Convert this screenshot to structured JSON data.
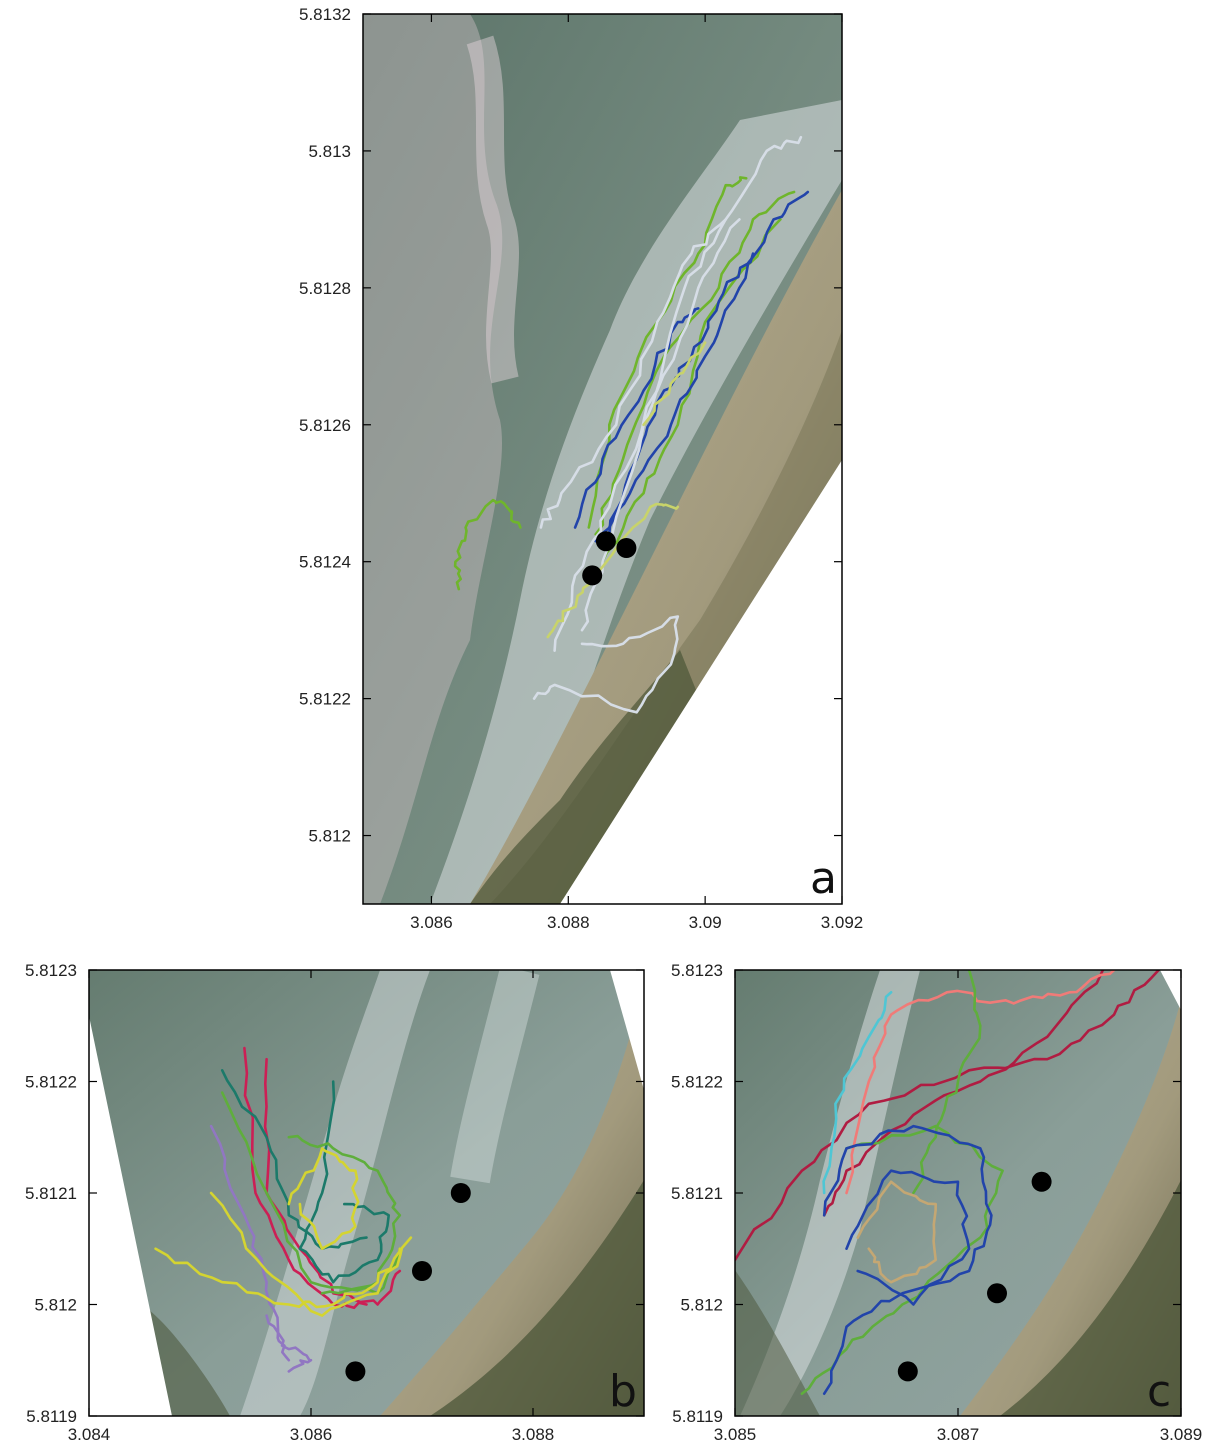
{
  "figure_labels": [
    "a",
    "b",
    "c"
  ],
  "marker_legend": "black dots = fixed instrument positions (no legend printed)",
  "colors": {
    "ocean_dark": "#5f786c",
    "ocean_mid": "#7f9488",
    "foam": "#d6dde0",
    "sand": "#b0a78c",
    "vegetation": "#4b5638",
    "marker": "#000000"
  },
  "chart_data": [
    {
      "panel": "a",
      "type": "scatter",
      "title": "",
      "xlabel": "",
      "ylabel": "",
      "xlim": [
        3.085,
        3.092
      ],
      "ylim": [
        5.8119,
        5.8132
      ],
      "xticks": [
        3.086,
        3.088,
        3.09,
        3.092
      ],
      "xtick_labels": [
        "3.086",
        "3.088",
        "3.09",
        "3.092"
      ],
      "yticks": [
        5.812,
        5.8122,
        5.8124,
        5.8126,
        5.8128,
        5.813,
        5.8132
      ],
      "ytick_labels": [
        "5.812",
        "5.8122",
        "5.8124",
        "5.8126",
        "5.8128",
        "5.813",
        "5.8132"
      ],
      "background": "aerial image of surf zone and beach",
      "markers": [
        {
          "x": 3.08835,
          "y": 5.81238
        },
        {
          "x": 3.08855,
          "y": 5.81243
        },
        {
          "x": 3.08885,
          "y": 5.81242
        }
      ],
      "series": [
        {
          "color": "#6fb52c",
          "points": [
            [
              3.0864,
              5.81236
            ],
            [
              3.08635,
              5.8124
            ],
            [
              3.0865,
              5.81245
            ],
            [
              3.0869,
              5.81249
            ],
            [
              3.0871,
              5.81248
            ],
            [
              3.0873,
              5.81245
            ]
          ]
        },
        {
          "color": "#6fb52c",
          "points": [
            [
              3.0883,
              5.81245
            ],
            [
              3.0886,
              5.8126
            ],
            [
              3.0893,
              5.81275
            ],
            [
              3.0899,
              5.81285
            ],
            [
              3.0903,
              5.81295
            ],
            [
              3.0906,
              5.81296
            ]
          ]
        },
        {
          "color": "#6fb52c",
          "points": [
            [
              3.0884,
              5.81244
            ],
            [
              3.0888,
              5.81255
            ],
            [
              3.0894,
              5.8127
            ],
            [
              3.0902,
              5.8128
            ],
            [
              3.0907,
              5.8129
            ],
            [
              3.0913,
              5.81294
            ]
          ]
        },
        {
          "color": "#6fb52c",
          "points": [
            [
              3.0885,
              5.8124
            ],
            [
              3.0891,
              5.8125
            ],
            [
              3.0896,
              5.8126
            ],
            [
              3.09,
              5.81275
            ],
            [
              3.0911,
              5.8129
            ]
          ]
        },
        {
          "color": "#2244aa",
          "points": [
            [
              3.0881,
              5.81245
            ],
            [
              3.0885,
              5.81255
            ],
            [
              3.0891,
              5.81265
            ],
            [
              3.0896,
              5.81275
            ],
            [
              3.0899,
              5.81277
            ]
          ]
        },
        {
          "color": "#2244aa",
          "points": [
            [
              3.0884,
              5.81243
            ],
            [
              3.0889,
              5.8125
            ],
            [
              3.0895,
              5.8126
            ],
            [
              3.09,
              5.8127
            ],
            [
              3.0905,
              5.8128
            ],
            [
              3.091,
              5.8129
            ],
            [
              3.0915,
              5.81294
            ]
          ]
        },
        {
          "color": "#2244aa",
          "points": [
            [
              3.0886,
              5.81244
            ],
            [
              3.089,
              5.81255
            ],
            [
              3.0894,
              5.81265
            ],
            [
              3.0898,
              5.8127
            ],
            [
              3.0902,
              5.81278
            ],
            [
              3.0907,
              5.81285
            ]
          ]
        },
        {
          "color": "#d6dde6",
          "points": [
            [
              3.0876,
              5.81245
            ],
            [
              3.0879,
              5.8125
            ],
            [
              3.0887,
              5.8126
            ],
            [
              3.0893,
              5.81275
            ],
            [
              3.0898,
              5.81285
            ],
            [
              3.0903,
              5.8129
            ]
          ]
        },
        {
          "color": "#d6dde6",
          "points": [
            [
              3.0875,
              5.8122
            ],
            [
              3.0878,
              5.81222
            ],
            [
              3.089,
              5.81218
            ],
            [
              3.0895,
              5.81225
            ],
            [
              3.0896,
              5.81232
            ],
            [
              3.0888,
              5.81228
            ],
            [
              3.0882,
              5.81228
            ]
          ]
        },
        {
          "color": "#d6dde6",
          "points": [
            [
              3.0882,
              5.8123
            ],
            [
              3.0885,
              5.8124
            ],
            [
              3.0891,
              5.8126
            ],
            [
              3.0897,
              5.8128
            ],
            [
              3.0903,
              5.8129
            ],
            [
              3.0909,
              5.813
            ],
            [
              3.0914,
              5.81302
            ]
          ]
        },
        {
          "color": "#d6dde6",
          "points": [
            [
              3.0878,
              5.81227
            ],
            [
              3.0881,
              5.81238
            ],
            [
              3.0886,
              5.81248
            ],
            [
              3.0893,
              5.81265
            ],
            [
              3.0899,
              5.8128
            ],
            [
              3.0905,
              5.8129
            ]
          ]
        },
        {
          "color": "#c8d36a",
          "points": [
            [
              3.0877,
              5.81229
            ],
            [
              3.088,
              5.81233
            ],
            [
              3.0884,
              5.81238
            ],
            [
              3.0892,
              5.81248
            ],
            [
              3.0896,
              5.81248
            ]
          ]
        },
        {
          "color": "#c8d36a",
          "points": [
            [
              3.0891,
              5.8126
            ],
            [
              3.0895,
              5.81266
            ],
            [
              3.09,
              5.81272
            ]
          ]
        }
      ]
    },
    {
      "panel": "b",
      "type": "scatter",
      "title": "",
      "xlabel": "",
      "ylabel": "",
      "xlim": [
        3.084,
        3.089
      ],
      "ylim": [
        5.8119,
        5.8123
      ],
      "xticks": [
        3.084,
        3.086,
        3.088
      ],
      "xtick_labels": [
        "3.084",
        "3.086",
        "3.088"
      ],
      "yticks": [
        5.8119,
        5.812,
        5.8121,
        5.8122,
        5.8123
      ],
      "ytick_labels": [
        "5.8119",
        "5.812",
        "5.8121",
        "5.8122",
        "5.8123"
      ],
      "background": "aerial image of surf zone and beach",
      "markers": [
        {
          "x": 3.08735,
          "y": 5.8121
        },
        {
          "x": 3.087,
          "y": 5.81203
        },
        {
          "x": 3.0864,
          "y": 5.81194
        }
      ],
      "series": [
        {
          "color": "#cc1f55",
          "points": [
            [
              3.0856,
              5.81222
            ],
            [
              3.0856,
              5.8121
            ],
            [
              3.0859,
              5.81205
            ],
            [
              3.0862,
              5.81201
            ],
            [
              3.0866,
              5.812
            ],
            [
              3.0868,
              5.81203
            ]
          ]
        },
        {
          "color": "#cc1f55",
          "points": [
            [
              3.0854,
              5.81223
            ],
            [
              3.0855,
              5.8121
            ],
            [
              3.0858,
              5.81204
            ],
            [
              3.0862,
              5.812
            ],
            [
              3.0865,
              5.812
            ]
          ]
        },
        {
          "color": "#1c7a6a",
          "points": [
            [
              3.0862,
              5.8122
            ],
            [
              3.0861,
              5.8121
            ],
            [
              3.0859,
              5.81205
            ],
            [
              3.0862,
              5.81202
            ],
            [
              3.0866,
              5.81204
            ],
            [
              3.0867,
              5.81208
            ],
            [
              3.0863,
              5.81209
            ]
          ]
        },
        {
          "color": "#1c7a6a",
          "points": [
            [
              3.0852,
              5.81221
            ],
            [
              3.0856,
              5.81215
            ],
            [
              3.0858,
              5.81208
            ],
            [
              3.0861,
              5.81205
            ],
            [
              3.0865,
              5.81206
            ]
          ]
        },
        {
          "color": "#5fae3c",
          "points": [
            [
              3.0852,
              5.81219
            ],
            [
              3.0856,
              5.8121
            ],
            [
              3.086,
              5.81202
            ],
            [
              3.0866,
              5.81201
            ],
            [
              3.0868,
              5.81205
            ]
          ]
        },
        {
          "color": "#5fae3c",
          "points": [
            [
              3.0858,
              5.81215
            ],
            [
              3.0862,
              5.81214
            ],
            [
              3.0866,
              5.81212
            ],
            [
              3.0868,
              5.81208
            ],
            [
              3.0866,
              5.81202
            ],
            [
              3.0861,
              5.81201
            ]
          ]
        },
        {
          "color": "#9177c2",
          "points": [
            [
              3.0851,
              5.81216
            ],
            [
              3.0854,
              5.81208
            ],
            [
              3.0856,
              5.81202
            ],
            [
              3.0857,
              5.81197
            ],
            [
              3.0858,
              5.81195
            ]
          ]
        },
        {
          "color": "#9177c2",
          "points": [
            [
              3.0856,
              5.81199
            ],
            [
              3.0858,
              5.81196
            ],
            [
              3.086,
              5.81195
            ],
            [
              3.0858,
              5.81194
            ]
          ]
        },
        {
          "color": "#d4d431",
          "points": [
            [
              3.0846,
              5.81205
            ],
            [
              3.0852,
              5.81202
            ],
            [
              3.0858,
              5.812
            ],
            [
              3.0862,
              5.812
            ],
            [
              3.0866,
              5.81202
            ],
            [
              3.0868,
              5.81205
            ]
          ]
        },
        {
          "color": "#d4d431",
          "points": [
            [
              3.0851,
              5.8121
            ],
            [
              3.0856,
              5.81203
            ],
            [
              3.0861,
              5.81199
            ],
            [
              3.0866,
              5.81201
            ],
            [
              3.0869,
              5.81206
            ]
          ]
        },
        {
          "color": "#d4d431",
          "points": [
            [
              3.0858,
              5.81209
            ],
            [
              3.0861,
              5.81214
            ],
            [
              3.0864,
              5.81212
            ],
            [
              3.0864,
              5.81207
            ],
            [
              3.0861,
              5.81205
            ],
            [
              3.0859,
              5.81209
            ]
          ]
        }
      ]
    },
    {
      "panel": "c",
      "type": "scatter",
      "title": "",
      "xlabel": "",
      "ylabel": "",
      "xlim": [
        3.085,
        3.089
      ],
      "ylim": [
        5.8119,
        5.8123
      ],
      "xticks": [
        3.085,
        3.087,
        3.089
      ],
      "xtick_labels": [
        "3.085",
        "3.087",
        "3.089"
      ],
      "yticks": [
        5.8119,
        5.812,
        5.8121,
        5.8122,
        5.8123
      ],
      "ytick_labels": [
        "5.8119",
        "5.812",
        "5.8121",
        "5.8122",
        "5.8123"
      ],
      "background": "aerial image of surf zone and beach",
      "markers": [
        {
          "x": 3.08775,
          "y": 5.81211
        },
        {
          "x": 3.08735,
          "y": 5.81201
        },
        {
          "x": 3.08655,
          "y": 5.81194
        }
      ],
      "series": [
        {
          "color": "#b01c42",
          "points": [
            [
              3.085,
              5.81204
            ],
            [
              3.0856,
              5.81212
            ],
            [
              3.0862,
              5.81218
            ],
            [
              3.0871,
              5.81221
            ],
            [
              3.0878,
              5.81222
            ],
            [
              3.0884,
              5.81226
            ],
            [
              3.0888,
              5.8123
            ]
          ]
        },
        {
          "color": "#b01c42",
          "points": [
            [
              3.0858,
              5.81208
            ],
            [
              3.086,
              5.81212
            ],
            [
              3.0866,
              5.81217
            ],
            [
              3.0872,
              5.8122
            ],
            [
              3.0878,
              5.81224
            ],
            [
              3.0883,
              5.8123
            ]
          ]
        },
        {
          "color": "#f07b78",
          "points": [
            [
              3.086,
              5.8121
            ],
            [
              3.0862,
              5.8122
            ],
            [
              3.0864,
              5.81226
            ],
            [
              3.0869,
              5.81228
            ],
            [
              3.0875,
              5.81227
            ],
            [
              3.088,
              5.81228
            ],
            [
              3.0884,
              5.8123
            ]
          ]
        },
        {
          "color": "#4fc6d4",
          "points": [
            [
              3.0858,
              5.8121
            ],
            [
              3.0859,
              5.81218
            ],
            [
              3.0862,
              5.81224
            ],
            [
              3.0864,
              5.81228
            ]
          ]
        },
        {
          "color": "#5fae3c",
          "points": [
            [
              3.0856,
              5.81192
            ],
            [
              3.086,
              5.81196
            ],
            [
              3.0865,
              5.812
            ],
            [
              3.0872,
              5.81206
            ],
            [
              3.0874,
              5.81212
            ],
            [
              3.0868,
              5.81216
            ],
            [
              3.086,
              5.81214
            ]
          ]
        },
        {
          "color": "#5fae3c",
          "points": [
            [
              3.0866,
              5.8121
            ],
            [
              3.0868,
              5.81215
            ],
            [
              3.087,
              5.8122
            ],
            [
              3.0872,
              5.81225
            ],
            [
              3.0871,
              5.8123
            ]
          ]
        },
        {
          "color": "#2244aa",
          "points": [
            [
              3.0858,
              5.81192
            ],
            [
              3.086,
              5.81198
            ],
            [
              3.0865,
              5.81201
            ],
            [
              3.0871,
              5.81203
            ],
            [
              3.0873,
              5.81208
            ],
            [
              3.0872,
              5.81214
            ],
            [
              3.0866,
              5.81216
            ],
            [
              3.086,
              5.81214
            ],
            [
              3.0858,
              5.81208
            ]
          ]
        },
        {
          "color": "#2244aa",
          "points": [
            [
              3.086,
              5.81205
            ],
            [
              3.0864,
              5.81212
            ],
            [
              3.087,
              5.81211
            ],
            [
              3.0871,
              5.81205
            ],
            [
              3.0866,
              5.812
            ],
            [
              3.0861,
              5.81203
            ]
          ]
        },
        {
          "color": "#c4a773",
          "points": [
            [
              3.0861,
              5.81206
            ],
            [
              3.0864,
              5.81211
            ],
            [
              3.0868,
              5.81209
            ],
            [
              3.0868,
              5.81204
            ],
            [
              3.0864,
              5.81202
            ],
            [
              3.0862,
              5.81205
            ]
          ]
        }
      ]
    }
  ]
}
